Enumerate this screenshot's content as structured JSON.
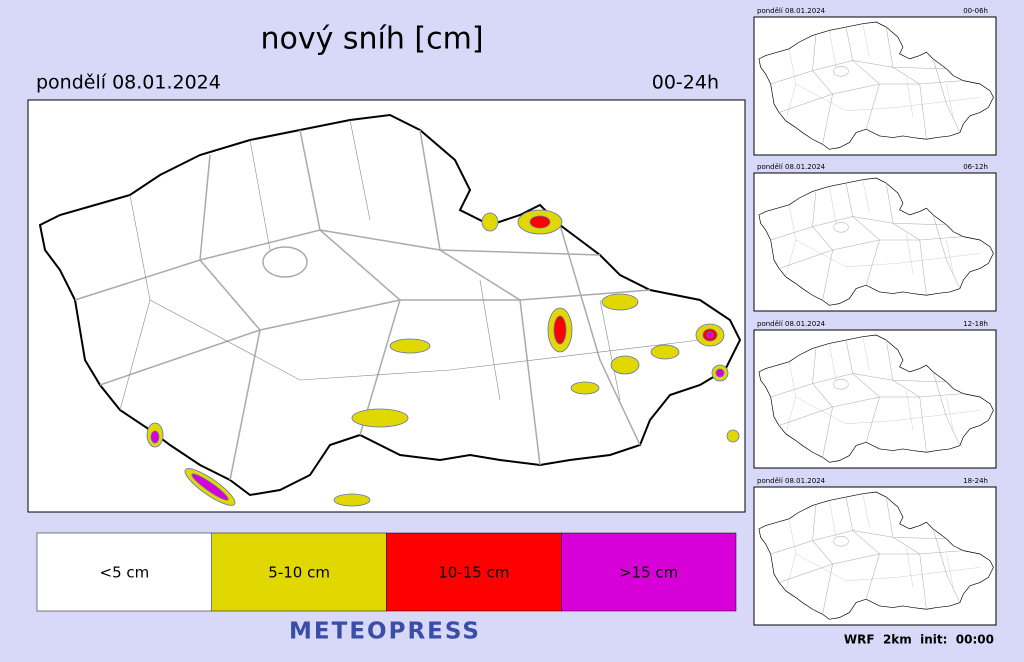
{
  "title": "nový sníh [cm]",
  "date": "pondělí 08.01.2024",
  "period": "00-24h",
  "legend": [
    {
      "label": "<5 cm",
      "color": "#ffffff"
    },
    {
      "label": "5-10 cm",
      "color": "#e0d800"
    },
    {
      "label": "10-15 cm",
      "color": "#ff0000"
    },
    {
      "label": ">15 cm",
      "color": "#d800d8"
    }
  ],
  "brand": "METEOPRESS",
  "thumbnails": [
    {
      "date": "pondělí 08.01.2024",
      "period": "00-06h"
    },
    {
      "date": "pondělí 08.01.2024",
      "period": "06-12h"
    },
    {
      "date": "pondělí 08.01.2024",
      "period": "12-18h"
    },
    {
      "date": "pondělí 08.01.2024",
      "period": "18-24h"
    }
  ],
  "footer": "WRF  2km  init:  00:00"
}
